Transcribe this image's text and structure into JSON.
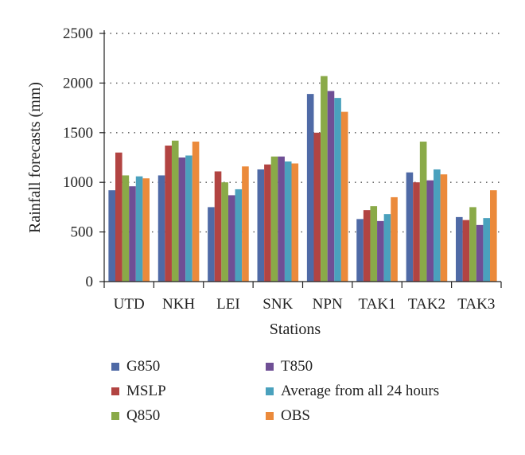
{
  "chart_data": {
    "type": "bar",
    "title": "",
    "xlabel": "Stations",
    "ylabel": "Rainfall forecasts (mm)",
    "ylim": [
      0,
      2500
    ],
    "yticks": [
      0,
      500,
      1000,
      1500,
      2000,
      2500
    ],
    "grid": "horizontal-dotted",
    "legend_position": "bottom",
    "categories": [
      "UTD",
      "NKH",
      "LEI",
      "SNK",
      "NPN",
      "TAK1",
      "TAK2",
      "TAK3"
    ],
    "series": [
      {
        "name": "G850",
        "color": "#4f6aa6",
        "values": [
          920,
          1070,
          750,
          1130,
          1890,
          630,
          1100,
          650
        ]
      },
      {
        "name": "MSLP",
        "color": "#b24442",
        "values": [
          1300,
          1370,
          1110,
          1180,
          1500,
          720,
          1000,
          620
        ]
      },
      {
        "name": "Q850",
        "color": "#8aaa48",
        "values": [
          1070,
          1420,
          1000,
          1260,
          2070,
          760,
          1410,
          750
        ]
      },
      {
        "name": "T850",
        "color": "#6f4f95",
        "values": [
          960,
          1250,
          870,
          1260,
          1920,
          610,
          1020,
          570
        ]
      },
      {
        "name": "Average from all 24 hours",
        "color": "#4aa1bd",
        "values": [
          1060,
          1270,
          930,
          1210,
          1850,
          680,
          1130,
          640
        ]
      },
      {
        "name": "OBS",
        "color": "#eb8a3b",
        "values": [
          1040,
          1410,
          1160,
          1190,
          1710,
          850,
          1080,
          920
        ]
      }
    ]
  }
}
